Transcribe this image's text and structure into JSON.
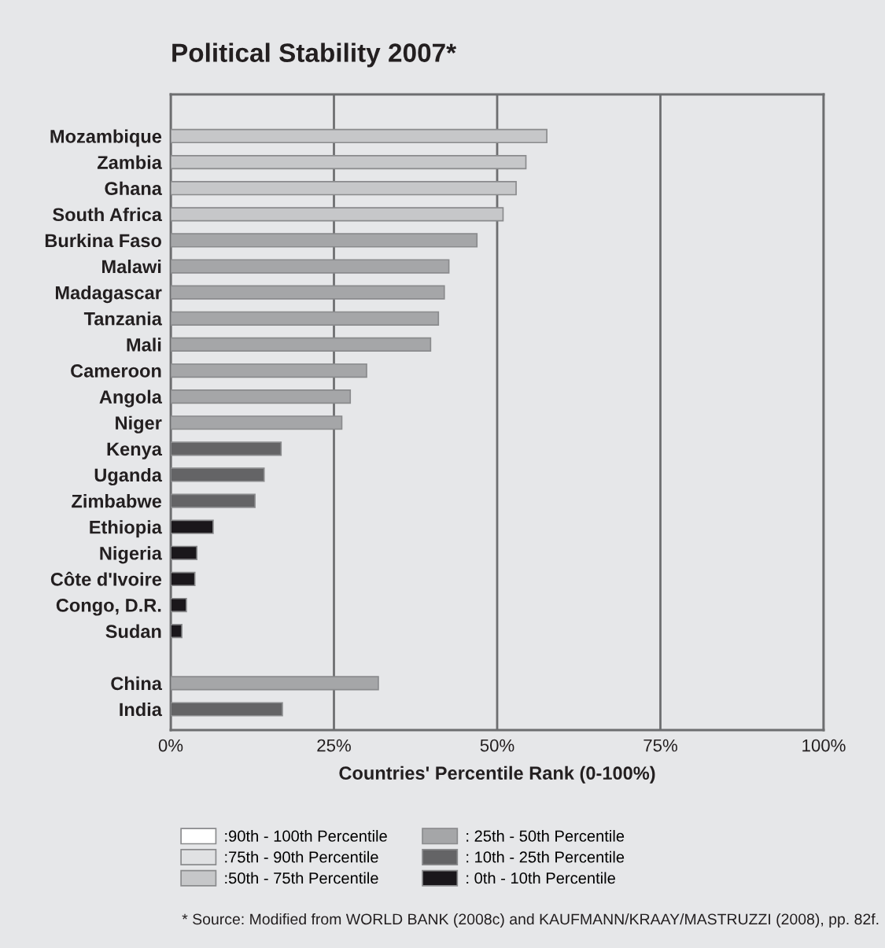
{
  "chart_data": {
    "type": "bar",
    "orientation": "horizontal",
    "title": "Political Stability 2007*",
    "xlabel": "Countries' Percentile Rank (0-100%)",
    "categories": [
      "Mozambique",
      "Zambia",
      "Ghana",
      "South Africa",
      "Burkina Faso",
      "Malawi",
      "Madagascar",
      "Tanzania",
      "Mali",
      "Cameroon",
      "Angola",
      "Niger",
      "Kenya",
      "Uganda",
      "Zimbabwe",
      "Ethiopia",
      "Nigeria",
      "Côte d'Ivoire",
      "Congo, D.R.",
      "Sudan",
      null,
      "China",
      "India"
    ],
    "series": [
      {
        "name": ":90th - 100th Percentile",
        "color": "#ffffff",
        "values": [
          null,
          null,
          null,
          null,
          null,
          null,
          null,
          null,
          null,
          null,
          null,
          null,
          null,
          null,
          null,
          null,
          null,
          null,
          null,
          null,
          null,
          null,
          null
        ]
      },
      {
        "name": ":75th - 90th Percentile",
        "color": "#e0e1e3",
        "values": [
          null,
          null,
          null,
          null,
          null,
          null,
          null,
          null,
          null,
          null,
          null,
          null,
          null,
          null,
          null,
          null,
          null,
          null,
          null,
          null,
          null,
          null,
          null
        ]
      },
      {
        "name": ":50th - 75th Percentile",
        "color": "#c6c7c9",
        "values": [
          57.6,
          54.4,
          52.9,
          50.9,
          null,
          null,
          null,
          null,
          null,
          null,
          null,
          null,
          null,
          null,
          null,
          null,
          null,
          null,
          null,
          null,
          null,
          null,
          null
        ]
      },
      {
        "name": ": 25th - 50th Percentile",
        "color": "#a5a6a8",
        "values": [
          null,
          null,
          null,
          null,
          46.9,
          42.6,
          41.9,
          41.0,
          39.8,
          30.0,
          27.5,
          26.2,
          null,
          null,
          null,
          null,
          null,
          null,
          null,
          null,
          null,
          31.8,
          null
        ]
      },
      {
        "name": ": 10th - 25th Percentile",
        "color": "#646466",
        "values": [
          null,
          null,
          null,
          null,
          null,
          null,
          null,
          null,
          null,
          null,
          null,
          null,
          16.9,
          14.3,
          12.9,
          null,
          null,
          null,
          null,
          null,
          null,
          null,
          17.1
        ]
      },
      {
        "name": ": 0th - 10th Percentile",
        "color": "#1a171b",
        "values": [
          null,
          null,
          null,
          null,
          null,
          null,
          null,
          null,
          null,
          null,
          null,
          null,
          null,
          null,
          null,
          6.5,
          4.0,
          3.7,
          2.4,
          1.7,
          null,
          null,
          null
        ]
      }
    ],
    "xlim": [
      0,
      100
    ],
    "xticks": [
      {
        "value": 0,
        "label": "0%"
      },
      {
        "value": 25,
        "label": "25%"
      },
      {
        "value": 50,
        "label": "50%"
      },
      {
        "value": 75,
        "label": "75%"
      },
      {
        "value": 100,
        "label": "100%"
      }
    ],
    "grid": "x",
    "legend": "bottom",
    "annotations": [
      "* Source: Modified from WORLD BANK (2008c) and KAUFMANN/KRAAY/MASTRUZZI (2008), pp. 82f."
    ]
  }
}
